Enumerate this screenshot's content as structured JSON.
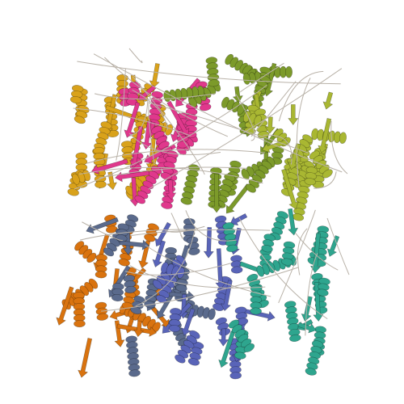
{
  "image": {
    "subject": "protein-cartoon-structure",
    "background_color": "#ffffff",
    "assemblies": [
      {
        "name": "upper-assembly",
        "chains": [
          {
            "name": "chain-gold",
            "color": "#d9a21b"
          },
          {
            "name": "chain-pink",
            "color": "#e0388c"
          },
          {
            "name": "chain-olive",
            "color": "#7c9a2a"
          },
          {
            "name": "chain-yellow-green",
            "color": "#a9b732"
          }
        ]
      },
      {
        "name": "lower-assembly",
        "chains": [
          {
            "name": "chain-orange",
            "color": "#d9730f"
          },
          {
            "name": "chain-slate",
            "color": "#5a6a8c"
          },
          {
            "name": "chain-blue",
            "color": "#5964b8"
          },
          {
            "name": "chain-teal",
            "color": "#2ea58e"
          }
        ]
      }
    ],
    "loop_color": "#b9b2a8"
  }
}
